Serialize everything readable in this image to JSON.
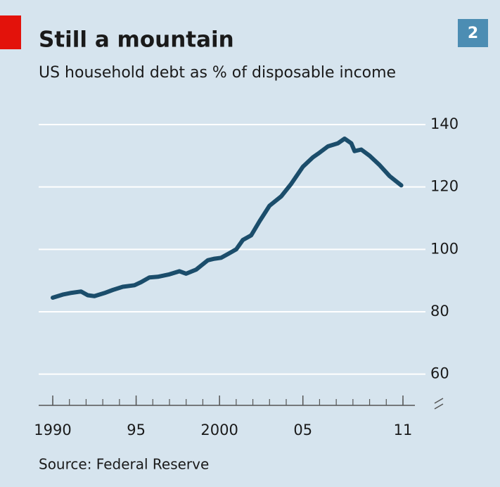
{
  "chart_data": {
    "type": "line",
    "title": "Still a mountain",
    "subtitle": "US household debt as % of disposable income",
    "badge": "2",
    "source": "Source: Federal Reserve",
    "x": [
      1990,
      1990.6,
      1991.05,
      1991.7,
      1992.1,
      1992.5,
      1993.1,
      1993.6,
      1994.2,
      1994.9,
      1995.3,
      1995.8,
      1996.3,
      1997,
      1997.6,
      1998,
      1998.6,
      1999.3,
      1999.7,
      2000.1,
      2000.5,
      2001,
      2001.4,
      2001.9,
      2002.4,
      2003,
      2003.7,
      2004.3,
      2005,
      2005.6,
      2006,
      2006.5,
      2007.1,
      2007.5,
      2007.9,
      2008.1,
      2008.5,
      2009,
      2009.6,
      2010.2,
      2010.9
    ],
    "series": [
      {
        "name": "US household debt",
        "color": "#1b4d6b",
        "values": [
          84.5,
          85.5,
          86,
          86.5,
          85.3,
          85,
          86,
          87,
          88,
          88.5,
          89.5,
          91,
          91.2,
          92,
          93,
          92.2,
          93.5,
          96.5,
          97,
          97.3,
          98.5,
          100,
          103,
          104.5,
          109,
          114,
          117,
          121,
          126.5,
          129.5,
          131,
          133,
          134,
          135.5,
          134,
          131.5,
          132,
          130,
          127,
          123.5,
          120.5
        ]
      }
    ],
    "xlim": [
      1990,
      2011
    ],
    "xticks": [
      1990,
      {
        "value": 1995,
        "label": "95"
      },
      2000,
      {
        "value": 2005,
        "label": "05"
      },
      {
        "value": 2011,
        "label": "11"
      }
    ],
    "xticks_minor": [
      1990,
      1991,
      1992,
      1993,
      1994,
      1995,
      1996,
      1997,
      1998,
      1999,
      2000,
      2001,
      2002,
      2003,
      2004,
      2005,
      2006,
      2007,
      2008,
      2009,
      2010,
      2011
    ],
    "ylim": [
      50,
      140
    ],
    "yticks": [
      60,
      80,
      100,
      120,
      140
    ],
    "grid": true
  }
}
